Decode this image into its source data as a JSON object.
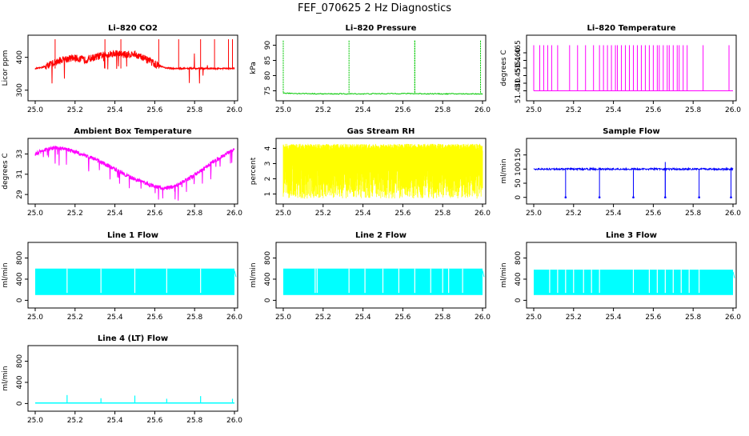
{
  "page": {
    "title": "FEF_070625  2 Hz Diagnostics"
  },
  "chart_data": [
    {
      "id": "co2",
      "type": "line",
      "title": "Li–820 CO2",
      "xlabel": "",
      "ylabel": "Licor ppm",
      "color": "#ff0000",
      "xlim": [
        24.98,
        26.0
      ],
      "ylim": [
        275,
        460
      ],
      "xticks": [
        "25.0",
        "25.2",
        "25.4",
        "25.6",
        "25.8",
        "26.0"
      ],
      "yticks": [
        {
          "v": 300,
          "t": "300"
        },
        {
          "v": 400,
          "t": "400"
        }
      ],
      "series": [
        {
          "x": [
            25.0,
            25.05,
            25.1,
            25.15,
            25.2,
            25.25,
            25.3,
            25.35,
            25.4,
            25.45,
            25.5,
            25.55,
            25.6,
            25.65,
            25.7,
            25.8,
            25.9,
            26.0
          ],
          "y": [
            365,
            372,
            385,
            395,
            398,
            392,
            400,
            408,
            412,
            408,
            410,
            395,
            380,
            368,
            366,
            366,
            366,
            366
          ]
        }
      ]
    },
    {
      "id": "pressure",
      "type": "line",
      "title": "Li–820 Pressure",
      "xlabel": "",
      "ylabel": "kPa",
      "color": "#00c800",
      "xlim": [
        24.98,
        26.0
      ],
      "ylim": [
        72.5,
        92.5
      ],
      "xticks": [
        "25.0",
        "25.2",
        "25.4",
        "25.6",
        "25.8",
        "26.0"
      ],
      "yticks": [
        {
          "v": 75,
          "t": "75"
        },
        {
          "v": 80,
          "t": "80"
        },
        {
          "v": 85,
          "t": "85"
        },
        {
          "v": 90,
          "t": "90"
        }
      ],
      "series": [
        {
          "x": [
            25.0,
            25.2,
            25.4,
            25.6,
            25.8,
            26.0
          ],
          "y": [
            74.2,
            74.0,
            74.0,
            74.1,
            74.0,
            74.0
          ]
        }
      ]
    },
    {
      "id": "licor-temp",
      "type": "line",
      "title": "Li–820 Temperature",
      "xlabel": "",
      "ylabel": "degrees C",
      "color": "#ff00ff",
      "xlim": [
        24.98,
        26.0
      ],
      "ylim": [
        51.435,
        51.475
      ],
      "xticks": [
        "25.0",
        "25.2",
        "25.4",
        "25.6",
        "25.8",
        "26.0"
      ],
      "yticks": [
        {
          "v": 51.44,
          "t": "51.440"
        },
        {
          "v": 51.445,
          "t": ""
        },
        {
          "v": 51.45,
          "t": "51.450"
        },
        {
          "v": 51.455,
          "t": ""
        },
        {
          "v": 51.46,
          "t": "51.460"
        },
        {
          "v": 51.465,
          "t": "51.465"
        }
      ],
      "levels": [
        51.44,
        51.47
      ]
    },
    {
      "id": "ambient-temp",
      "type": "line",
      "title": "Ambient Box Temperature",
      "xlabel": "",
      "ylabel": "degrees C",
      "color": "#ff00ff",
      "xlim": [
        24.98,
        26.0
      ],
      "ylim": [
        28.3,
        34.3
      ],
      "xticks": [
        "25.0",
        "25.2",
        "25.4",
        "25.6",
        "25.8",
        "26.0"
      ],
      "yticks": [
        {
          "v": 29,
          "t": "29"
        },
        {
          "v": 31,
          "t": "31"
        },
        {
          "v": 33,
          "t": "33"
        }
      ],
      "series": [
        {
          "x": [
            25.0,
            25.05,
            25.1,
            25.15,
            25.2,
            25.3,
            25.4,
            25.5,
            25.6,
            25.65,
            25.7,
            25.8,
            25.9,
            26.0
          ],
          "y": [
            33.0,
            33.4,
            33.6,
            33.5,
            33.2,
            32.5,
            31.5,
            30.5,
            29.8,
            29.6,
            29.8,
            30.9,
            32.3,
            33.5
          ]
        }
      ]
    },
    {
      "id": "rh",
      "type": "line",
      "title": "Gas Stream RH",
      "xlabel": "",
      "ylabel": "percent",
      "color": "#ffff00",
      "xlim": [
        24.98,
        26.0
      ],
      "ylim": [
        0.5,
        4.5
      ],
      "xticks": [
        "25.0",
        "25.2",
        "25.4",
        "25.6",
        "25.8",
        "26.0"
      ],
      "yticks": [
        {
          "v": 1,
          "t": "1"
        },
        {
          "v": 2,
          "t": "2"
        },
        {
          "v": 3,
          "t": "3"
        },
        {
          "v": 4,
          "t": "4"
        }
      ],
      "range": [
        0.7,
        4.3
      ]
    },
    {
      "id": "sample-flow",
      "type": "line",
      "title": "Sample Flow",
      "xlabel": "",
      "ylabel": "ml/min",
      "color": "#0000ff",
      "xlim": [
        24.98,
        26.0
      ],
      "ylim": [
        -15,
        200
      ],
      "xticks": [
        "25.0",
        "25.2",
        "25.4",
        "25.6",
        "25.8",
        "26.0"
      ],
      "yticks": [
        {
          "v": 0,
          "t": "0"
        },
        {
          "v": 50,
          "t": "50"
        },
        {
          "v": 100,
          "t": "100"
        },
        {
          "v": 150,
          "t": "150"
        }
      ],
      "baseline": 100,
      "dips": [
        25.16,
        25.33,
        25.5,
        25.66,
        25.83,
        25.99
      ]
    },
    {
      "id": "line1",
      "type": "area",
      "title": "Line 1 Flow",
      "xlabel": "",
      "ylabel": "ml/min",
      "color": "#00ffff",
      "xlim": [
        24.98,
        26.0
      ],
      "ylim": [
        -100,
        1050
      ],
      "xticks": [
        "25.0",
        "25.2",
        "25.4",
        "25.6",
        "25.8",
        "26.0"
      ],
      "yticks": [
        {
          "v": 0,
          "t": "0"
        },
        {
          "v": 400,
          "t": "400"
        },
        {
          "v": 800,
          "t": "800"
        }
      ],
      "band": [
        100,
        600
      ],
      "gaps": [
        25.16,
        25.33,
        25.5,
        25.66,
        25.83
      ]
    },
    {
      "id": "line2",
      "type": "area",
      "title": "Line 2 Flow",
      "xlabel": "",
      "ylabel": "ml/min",
      "color": "#00ffff",
      "xlim": [
        24.98,
        26.0
      ],
      "ylim": [
        -100,
        1050
      ],
      "xticks": [
        "25.0",
        "25.2",
        "25.4",
        "25.6",
        "25.8",
        "26.0"
      ],
      "yticks": [
        {
          "v": 0,
          "t": "0"
        },
        {
          "v": 400,
          "t": "400"
        },
        {
          "v": 800,
          "t": "800"
        }
      ],
      "band": [
        100,
        600
      ],
      "gaps": [
        25.16,
        25.17,
        25.33,
        25.41,
        25.5,
        25.58,
        25.66,
        25.74,
        25.8,
        25.83,
        25.9
      ]
    },
    {
      "id": "line3",
      "type": "area",
      "title": "Line 3 Flow",
      "xlabel": "",
      "ylabel": "ml/min",
      "color": "#00ffff",
      "xlim": [
        24.98,
        26.0
      ],
      "ylim": [
        -100,
        1050
      ],
      "xticks": [
        "25.0",
        "25.2",
        "25.4",
        "25.6",
        "25.8",
        "26.0"
      ],
      "yticks": [
        {
          "v": 0,
          "t": "0"
        },
        {
          "v": 400,
          "t": "400"
        },
        {
          "v": 800,
          "t": "800"
        }
      ],
      "band": [
        100,
        580
      ],
      "gaps": [
        25.08,
        25.12,
        25.16,
        25.2,
        25.25,
        25.29,
        25.33,
        25.5,
        25.58,
        25.62,
        25.66,
        25.7,
        25.74,
        25.78,
        25.83
      ]
    },
    {
      "id": "line4",
      "type": "line",
      "title": "Line 4 (LT) Flow",
      "xlabel": "",
      "ylabel": "ml/min",
      "color": "#00ffff",
      "xlim": [
        24.98,
        26.0
      ],
      "ylim": [
        -100,
        1050
      ],
      "xticks": [
        "25.0",
        "25.2",
        "25.4",
        "25.6",
        "25.8",
        "26.0"
      ],
      "yticks": [
        {
          "v": 0,
          "t": "0"
        },
        {
          "v": 400,
          "t": "400"
        },
        {
          "v": 800,
          "t": "800"
        }
      ],
      "baseline": 10,
      "spikes": [
        {
          "x": 25.16,
          "y": 160
        },
        {
          "x": 25.33,
          "y": 100
        },
        {
          "x": 25.5,
          "y": 150
        },
        {
          "x": 25.66,
          "y": 90
        },
        {
          "x": 25.83,
          "y": 140
        },
        {
          "x": 25.99,
          "y": 90
        }
      ]
    }
  ]
}
